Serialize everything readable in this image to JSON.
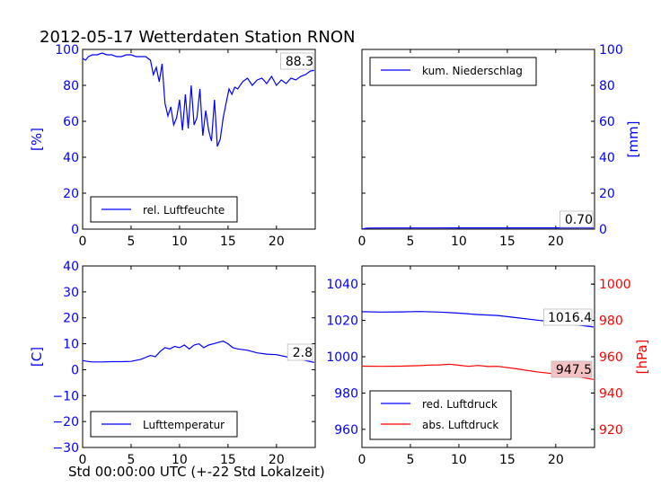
{
  "figure": {
    "title": "2012-05-17 Wetterdaten Station RNON",
    "xcaption": "Std 00:00:00 UTC (+-22 Std Lokalzeit)"
  },
  "colors": {
    "blue": "#0000ff",
    "red": "#ff0000",
    "axis": "#000000",
    "value_box_red": "#f4c2c2"
  },
  "chart_data": [
    {
      "type": "line",
      "name": "humidity",
      "xlim": [
        0,
        24
      ],
      "ylim": [
        0,
        100
      ],
      "ylabel": "[%]",
      "xticks": [
        0,
        5,
        10,
        15,
        20
      ],
      "yticks": [
        0,
        20,
        40,
        60,
        80,
        100
      ],
      "legend_position": "lower-left",
      "grid": false,
      "current_value_label": "88.3",
      "series": [
        {
          "name": "rel. Luftfeuchte",
          "color": "#0000ff",
          "x": [
            0,
            0.3,
            0.6,
            1,
            1.5,
            2,
            2.5,
            3,
            3.5,
            4,
            4.5,
            5,
            5.5,
            6,
            6.5,
            7,
            7.3,
            7.6,
            7.9,
            8.2,
            8.5,
            8.8,
            9.1,
            9.4,
            9.7,
            10,
            10.3,
            10.6,
            10.9,
            11.2,
            11.5,
            11.8,
            12.1,
            12.4,
            12.7,
            13,
            13.3,
            13.6,
            13.9,
            14.2,
            14.5,
            14.8,
            15.1,
            15.4,
            15.7,
            16,
            16.5,
            17,
            17.5,
            18,
            18.5,
            19,
            19.5,
            20,
            20.5,
            21,
            21.5,
            22,
            22.5,
            23,
            23.5,
            23.9
          ],
          "y": [
            95,
            94,
            96,
            97,
            97,
            98,
            97,
            97,
            96,
            96,
            97,
            97,
            96,
            96,
            96,
            94,
            86,
            90,
            82,
            92,
            70,
            63,
            68,
            58,
            62,
            72,
            55,
            75,
            56,
            80,
            58,
            62,
            78,
            52,
            66,
            55,
            49,
            72,
            46,
            50,
            62,
            70,
            78,
            75,
            79,
            78,
            82,
            84,
            80,
            83,
            84,
            81,
            85,
            80,
            83,
            81,
            84,
            83,
            85,
            86,
            88,
            88.3
          ]
        }
      ]
    },
    {
      "type": "line",
      "name": "precipitation",
      "xlim": [
        0,
        24
      ],
      "ylim": [
        0,
        100
      ],
      "ylabel": "[mm]",
      "xticks": [
        0,
        5,
        10,
        15,
        20
      ],
      "yticks": [
        0,
        20,
        40,
        60,
        80,
        100
      ],
      "legend_position": "upper-left",
      "grid": false,
      "current_value_label": "0.70",
      "series": [
        {
          "name": "kum. Niederschlag",
          "color": "#0000ff",
          "x": [
            0,
            0.3,
            0.6,
            3,
            8,
            12,
            16,
            20,
            23.9
          ],
          "y": [
            0,
            0.4,
            0.6,
            0.65,
            0.67,
            0.68,
            0.69,
            0.7,
            0.7
          ]
        }
      ]
    },
    {
      "type": "line",
      "name": "temperature",
      "xlim": [
        0,
        24
      ],
      "ylim": [
        -30,
        40
      ],
      "ylabel": "[C]",
      "xticks": [
        0,
        5,
        10,
        15,
        20
      ],
      "yticks": [
        -30,
        -20,
        -10,
        0,
        10,
        20,
        30,
        40
      ],
      "legend_position": "lower-left",
      "grid": false,
      "current_value_label": "2.8",
      "series": [
        {
          "name": "Lufttemperatur",
          "color": "#0000ff",
          "x": [
            0,
            0.5,
            1,
            2,
            3,
            4,
            5,
            6,
            7,
            7.5,
            8,
            8.5,
            9,
            9.5,
            10,
            10.5,
            11,
            11.5,
            12,
            12.5,
            13,
            13.5,
            14,
            14.5,
            15,
            15.5,
            16,
            17,
            18,
            19,
            20,
            21,
            22,
            23,
            23.9
          ],
          "y": [
            3.5,
            3.2,
            3,
            3,
            3.1,
            3.1,
            3.2,
            4,
            5.5,
            5,
            7,
            8.5,
            8,
            9,
            8.5,
            9.5,
            8,
            9.5,
            10,
            8.5,
            9.5,
            10,
            10.5,
            11,
            10,
            8.5,
            8,
            7.5,
            6.5,
            6,
            5.8,
            5,
            4.5,
            3.5,
            2.8
          ]
        }
      ]
    },
    {
      "type": "line",
      "name": "pressure",
      "xlim": [
        0,
        24
      ],
      "ylim": [
        950,
        1050
      ],
      "ylim_right": [
        910,
        1010
      ],
      "ylabel_right": "[hPa]",
      "xticks": [
        0,
        5,
        10,
        15,
        20
      ],
      "yticks": [
        960,
        980,
        1000,
        1020,
        1040
      ],
      "yticks_right": [
        920,
        940,
        960,
        980,
        1000
      ],
      "legend_position": "lower-left",
      "grid": false,
      "current_value_label": "1016.4",
      "current_value_label_right": "947.5",
      "series": [
        {
          "name": "red. Luftdruck",
          "color": "#0000ff",
          "axis": "left",
          "x": [
            0,
            2,
            4,
            6,
            8,
            10,
            12,
            14,
            16,
            18,
            20,
            22,
            23.9
          ],
          "y": [
            1024.8,
            1024.6,
            1024.7,
            1024.9,
            1024.6,
            1024.0,
            1023.2,
            1022.7,
            1021.5,
            1020.2,
            1019.0,
            1017.6,
            1016.4
          ]
        },
        {
          "name": "abs. Luftdruck",
          "color": "#ff0000",
          "axis": "right",
          "x": [
            0,
            2,
            4,
            6,
            7,
            8,
            9,
            10,
            11,
            12,
            13,
            14,
            16,
            18,
            20,
            22,
            23.9
          ],
          "y": [
            954.8,
            954.7,
            954.8,
            955.1,
            955.4,
            955.5,
            955.9,
            955.3,
            954.7,
            955.2,
            954.6,
            954.7,
            953.3,
            951.7,
            950.5,
            949.2,
            947.5
          ]
        }
      ]
    }
  ]
}
